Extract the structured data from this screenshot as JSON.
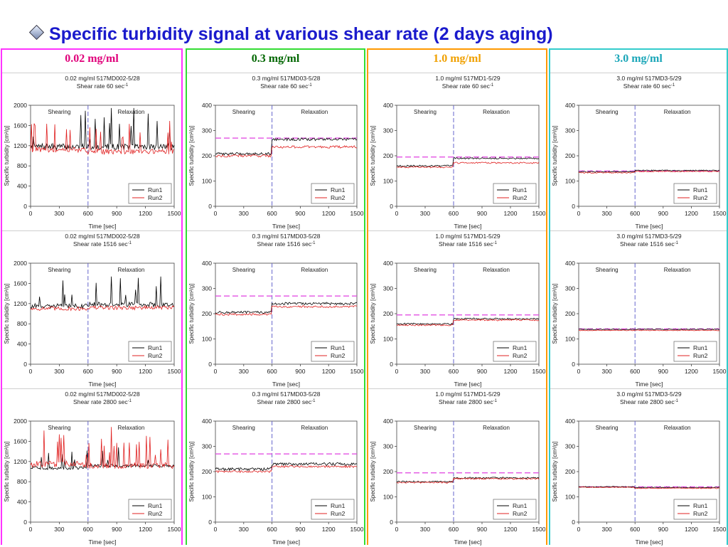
{
  "slide_title": "Specific turbidity signal at various shear rate (2 days aging)",
  "colors": {
    "title": "#1a1acc",
    "run1": "#000000",
    "run2": "#e02020",
    "reference": "#e040e0",
    "divider": "#6666cc"
  },
  "columns": [
    {
      "label": "0.02 mg/ml",
      "label_color": "#e0007a",
      "border_color": "#ff33ff"
    },
    {
      "label": "0.3 mg/ml",
      "label_color": "#006600",
      "border_color": "#33dd33"
    },
    {
      "label": "1.0 mg/ml",
      "label_color": "#f0a000",
      "border_color": "#ff9900"
    },
    {
      "label": "3.0 mg/ml",
      "label_color": "#1aa6b8",
      "border_color": "#33cccc"
    }
  ],
  "chart_data": [
    {
      "type": "line",
      "col": 0,
      "row": 0,
      "title": "0.02 mg/ml 517MD002-5/28",
      "subtitle": "Shear rate 60 sec",
      "subtitle_sup": "-1",
      "xlabel": "Time [sec]",
      "ylabel": "Specific turbidity [cm²/g]",
      "xlim": [
        0,
        1500
      ],
      "ylim": [
        0,
        2000
      ],
      "xticks": [
        "0",
        "300",
        "600",
        "900",
        "1200",
        "1500"
      ],
      "yticks": [
        "0",
        "400",
        "800",
        "1200",
        "1600",
        "2000"
      ],
      "phase_labels": [
        "Shearing",
        "Relaxation"
      ],
      "divider_x": 600,
      "reference_y": null,
      "series": [
        {
          "name": "Run1",
          "start": 1180,
          "end": 1180,
          "noise": 60,
          "spikes": true
        },
        {
          "name": "Run2",
          "start": 1120,
          "end": 1080,
          "noise": 50,
          "spikes": true
        }
      ]
    },
    {
      "type": "line",
      "col": 0,
      "row": 1,
      "title": "0.02 mg/ml 517MD002-5/28",
      "subtitle": "Shear rate 1516 sec",
      "subtitle_sup": "-1",
      "xlabel": "Time [sec]",
      "ylabel": "Specific turbidity [cm²/g]",
      "xlim": [
        0,
        1500
      ],
      "ylim": [
        0,
        2000
      ],
      "xticks": [
        "0",
        "300",
        "600",
        "900",
        "1200",
        "1500"
      ],
      "yticks": [
        "0",
        "400",
        "800",
        "1200",
        "1600",
        "2000"
      ],
      "phase_labels": [
        "Shearing",
        "Relaxation"
      ],
      "divider_x": 600,
      "reference_y": null,
      "series": [
        {
          "name": "Run1",
          "start": 1150,
          "end": 1180,
          "noise": 50,
          "spikes": true
        },
        {
          "name": "Run2",
          "start": 1100,
          "end": 1120,
          "noise": 40,
          "spikes": false
        }
      ]
    },
    {
      "type": "line",
      "col": 0,
      "row": 2,
      "title": "0.02 mg/ml 517MD002-5/28",
      "subtitle": "Shear rate 2800 sec",
      "subtitle_sup": "-1",
      "xlabel": "Time [sec]",
      "ylabel": "Specific turbidity [cm²/g]",
      "xlim": [
        0,
        1500
      ],
      "ylim": [
        0,
        2000
      ],
      "xticks": [
        "0",
        "300",
        "600",
        "900",
        "1200",
        "1500"
      ],
      "yticks": [
        "0",
        "400",
        "800",
        "1200",
        "1600",
        "2000"
      ],
      "phase_labels": [
        "Shearing",
        "Relaxation"
      ],
      "divider_x": 600,
      "reference_y": null,
      "series": [
        {
          "name": "Run1",
          "start": 1070,
          "end": 1120,
          "noise": 30,
          "spikes": true
        },
        {
          "name": "Run2",
          "start": 1150,
          "end": 1120,
          "noise": 60,
          "spikes": true
        }
      ]
    },
    {
      "type": "line",
      "col": 1,
      "row": 0,
      "title": "0.3 mg/ml 517MD03-5/28",
      "subtitle": "Shear rate 60 sec",
      "subtitle_sup": "-1",
      "xlabel": "Time [sec]",
      "ylabel": "Specific turbidity [cm²/g]",
      "xlim": [
        0,
        1500
      ],
      "ylim": [
        0,
        400
      ],
      "xticks": [
        "0",
        "300",
        "600",
        "900",
        "1200",
        "1500"
      ],
      "yticks": [
        "0",
        "100",
        "200",
        "300",
        "400"
      ],
      "phase_labels": [
        "Shearing",
        "Relaxation"
      ],
      "divider_x": 600,
      "reference_y": 270,
      "series": [
        {
          "name": "Run1",
          "start": 208,
          "end": 265,
          "noise": 5,
          "spikes": false
        },
        {
          "name": "Run2",
          "start": 200,
          "end": 235,
          "noise": 5,
          "spikes": false
        }
      ]
    },
    {
      "type": "line",
      "col": 1,
      "row": 1,
      "title": "0.3 mg/ml 517MD03-5/28",
      "subtitle": "Shear rate 1516 sec",
      "subtitle_sup": "-1",
      "xlabel": "Time [sec]",
      "ylabel": "Specific turbidity [cm²/g]",
      "xlim": [
        0,
        1500
      ],
      "ylim": [
        0,
        400
      ],
      "xticks": [
        "0",
        "300",
        "600",
        "900",
        "1200",
        "1500"
      ],
      "yticks": [
        "0",
        "100",
        "200",
        "300",
        "400"
      ],
      "phase_labels": [
        "Shearing",
        "Relaxation"
      ],
      "divider_x": 600,
      "reference_y": 270,
      "series": [
        {
          "name": "Run1",
          "start": 205,
          "end": 240,
          "noise": 5,
          "spikes": false
        },
        {
          "name": "Run2",
          "start": 197,
          "end": 228,
          "noise": 4,
          "spikes": false
        }
      ]
    },
    {
      "type": "line",
      "col": 1,
      "row": 2,
      "title": "0.3 mg/ml 517MD03-5/28",
      "subtitle": "Shear rate 2800 sec",
      "subtitle_sup": "-1",
      "xlabel": "Time [sec]",
      "ylabel": "Specific turbidity [cm²/g]",
      "xlim": [
        0,
        1500
      ],
      "ylim": [
        0,
        400
      ],
      "xticks": [
        "0",
        "300",
        "600",
        "900",
        "1200",
        "1500"
      ],
      "yticks": [
        "0",
        "100",
        "200",
        "300",
        "400"
      ],
      "phase_labels": [
        "Shearing",
        "Relaxation"
      ],
      "divider_x": 600,
      "reference_y": 270,
      "series": [
        {
          "name": "Run1",
          "start": 210,
          "end": 230,
          "noise": 6,
          "spikes": false
        },
        {
          "name": "Run2",
          "start": 200,
          "end": 220,
          "noise": 4,
          "spikes": false
        }
      ]
    },
    {
      "type": "line",
      "col": 2,
      "row": 0,
      "title": "1.0 mg/ml 517MD1-5/29",
      "subtitle": "Shear rate 60 sec",
      "subtitle_sup": "-1",
      "xlabel": "Time [sec]",
      "ylabel": "Specific turbidity [cm²/g]",
      "xlim": [
        0,
        1500
      ],
      "ylim": [
        0,
        400
      ],
      "xticks": [
        "0",
        "300",
        "600",
        "900",
        "1200",
        "1500"
      ],
      "yticks": [
        "0",
        "100",
        "200",
        "300",
        "400"
      ],
      "phase_labels": [
        "Shearing",
        "Relaxation"
      ],
      "divider_x": 600,
      "reference_y": 195,
      "series": [
        {
          "name": "Run1",
          "start": 160,
          "end": 190,
          "noise": 3,
          "spikes": false
        },
        {
          "name": "Run2",
          "start": 155,
          "end": 172,
          "noise": 3,
          "spikes": false
        }
      ]
    },
    {
      "type": "line",
      "col": 2,
      "row": 1,
      "title": "1.0 mg/ml 517MD1-5/29",
      "subtitle": "Shear rate 1516 sec",
      "subtitle_sup": "-1",
      "xlabel": "Time [sec]",
      "ylabel": "Specific turbidity [cm²/g]",
      "xlim": [
        0,
        1500
      ],
      "ylim": [
        0,
        400
      ],
      "xticks": [
        "0",
        "300",
        "600",
        "900",
        "1200",
        "1500"
      ],
      "yticks": [
        "0",
        "100",
        "200",
        "300",
        "400"
      ],
      "phase_labels": [
        "Shearing",
        "Relaxation"
      ],
      "divider_x": 600,
      "reference_y": 195,
      "series": [
        {
          "name": "Run1",
          "start": 160,
          "end": 180,
          "noise": 3,
          "spikes": false
        },
        {
          "name": "Run2",
          "start": 155,
          "end": 175,
          "noise": 3,
          "spikes": false
        }
      ]
    },
    {
      "type": "line",
      "col": 2,
      "row": 2,
      "title": "1.0 mg/ml 517MD1-5/29",
      "subtitle": "Shear rate 2800 sec",
      "subtitle_sup": "-1",
      "xlabel": "Time [sec]",
      "ylabel": "Specific turbidity [cm²/g]",
      "xlim": [
        0,
        1500
      ],
      "ylim": [
        0,
        400
      ],
      "xticks": [
        "0",
        "300",
        "600",
        "900",
        "1200",
        "1500"
      ],
      "yticks": [
        "0",
        "100",
        "200",
        "300",
        "400"
      ],
      "phase_labels": [
        "Shearing",
        "Relaxation"
      ],
      "divider_x": 600,
      "reference_y": 195,
      "series": [
        {
          "name": "Run1",
          "start": 160,
          "end": 175,
          "noise": 3,
          "spikes": false
        },
        {
          "name": "Run2",
          "start": 157,
          "end": 172,
          "noise": 3,
          "spikes": false
        }
      ]
    },
    {
      "type": "line",
      "col": 3,
      "row": 0,
      "title": "3.0 mg/ml 517MD3-5/29",
      "subtitle": "Shear rate 60 sec",
      "subtitle_sup": "-1",
      "xlabel": "Time [sec]",
      "ylabel": "Specific turbidity [cm²/g]",
      "xlim": [
        0,
        1500
      ],
      "ylim": [
        0,
        400
      ],
      "xticks": [
        "0",
        "300",
        "600",
        "900",
        "1200",
        "1500"
      ],
      "yticks": [
        "0",
        "100",
        "200",
        "300",
        "400"
      ],
      "phase_labels": [
        "Shearing",
        "Relaxation"
      ],
      "divider_x": 600,
      "reference_y": 140,
      "series": [
        {
          "name": "Run1",
          "start": 137,
          "end": 142,
          "noise": 2,
          "spikes": false
        },
        {
          "name": "Run2",
          "start": 133,
          "end": 138,
          "noise": 2,
          "spikes": false
        }
      ]
    },
    {
      "type": "line",
      "col": 3,
      "row": 1,
      "title": "3.0 mg/ml 517MD3-5/29",
      "subtitle": "Shear rate 1516 sec",
      "subtitle_sup": "-1",
      "xlabel": "Time [sec]",
      "ylabel": "Specific turbidity [cm²/g]",
      "xlim": [
        0,
        1500
      ],
      "ylim": [
        0,
        400
      ],
      "xticks": [
        "0",
        "300",
        "600",
        "900",
        "1200",
        "1500"
      ],
      "yticks": [
        "0",
        "100",
        "200",
        "300",
        "400"
      ],
      "phase_labels": [
        "Shearing",
        "Relaxation"
      ],
      "divider_x": 600,
      "reference_y": 140,
      "series": [
        {
          "name": "Run1",
          "start": 138,
          "end": 138,
          "noise": 1.5,
          "spikes": false
        },
        {
          "name": "Run2",
          "start": 134,
          "end": 134,
          "noise": 1.5,
          "spikes": false
        }
      ]
    },
    {
      "type": "line",
      "col": 3,
      "row": 2,
      "title": "3.0 mg/ml 517MD3-5/29",
      "subtitle": "Shear rate 2800 sec",
      "subtitle_sup": "-1",
      "xlabel": "Time [sec]",
      "ylabel": "Specific turbidity [cm²/g]",
      "xlim": [
        0,
        1500
      ],
      "ylim": [
        0,
        400
      ],
      "xticks": [
        "0",
        "300",
        "600",
        "900",
        "1200",
        "1500"
      ],
      "yticks": [
        "0",
        "100",
        "200",
        "300",
        "400"
      ],
      "phase_labels": [
        "Shearing",
        "Relaxation"
      ],
      "divider_x": 600,
      "reference_y": 140,
      "series": [
        {
          "name": "Run1",
          "start": 140,
          "end": 137,
          "noise": 1.5,
          "spikes": false
        },
        {
          "name": "Run2",
          "start": 138,
          "end": 134,
          "noise": 1.5,
          "spikes": false
        }
      ]
    }
  ]
}
